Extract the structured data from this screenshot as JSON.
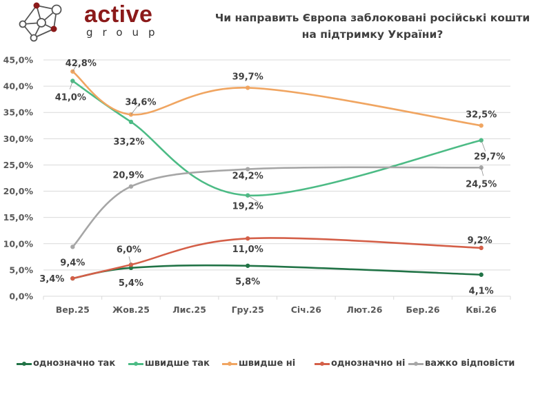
{
  "logo": {
    "word": "active",
    "sub": "group",
    "colors": {
      "brand": "#8b1a1a",
      "node": "#8b1a1a",
      "line": "#555555"
    }
  },
  "title": {
    "line1": "Чи направить Європа заблоковані російські кошти",
    "line2": "на підтримку України?"
  },
  "chart_data": {
    "type": "line",
    "title": "Чи направить Європа заблоковані російські кошти на підтримку України?",
    "xlabel": "",
    "ylabel": "",
    "categories": [
      "Вер.25",
      "Жов.25",
      "Лис.25",
      "Гру.25",
      "Січ.26",
      "Лют.26",
      "Бер.26",
      "Кві.26"
    ],
    "yticks": [
      "0,0%",
      "5,0%",
      "10,0%",
      "15,0%",
      "20,0%",
      "25,0%",
      "30,0%",
      "35,0%",
      "40,0%",
      "45,0%"
    ],
    "ylim": [
      0,
      45
    ],
    "grid": true,
    "smooth": true,
    "legend_position": "bottom",
    "series": [
      {
        "name": "однозначно так",
        "color": "#217346",
        "values": [
          3.4,
          5.4,
          null,
          5.8,
          null,
          null,
          null,
          4.1
        ],
        "labels": [
          "3,4%",
          "5,4%",
          null,
          "5,8%",
          null,
          null,
          null,
          "4,1%"
        ]
      },
      {
        "name": "швидше так",
        "color": "#4cbb85",
        "values": [
          41.0,
          33.2,
          null,
          19.2,
          null,
          null,
          null,
          29.7
        ],
        "labels": [
          "41,0%",
          "33,2%",
          null,
          "19,2%",
          null,
          null,
          null,
          "29,7%"
        ]
      },
      {
        "name": "швидше ні",
        "color": "#f0a561",
        "values": [
          42.8,
          34.6,
          null,
          39.7,
          null,
          null,
          null,
          32.5
        ],
        "labels": [
          "42,8%",
          "34,6%",
          null,
          "39,7%",
          null,
          null,
          null,
          "32,5%"
        ]
      },
      {
        "name": "однозначно ні",
        "color": "#d45f48",
        "values": [
          3.4,
          6.0,
          null,
          11.0,
          null,
          null,
          null,
          9.2
        ],
        "labels": [
          null,
          "6,0%",
          null,
          "11,0%",
          null,
          null,
          null,
          "9,2%"
        ]
      },
      {
        "name": "важко відповісти",
        "color": "#a6a6a6",
        "values": [
          9.4,
          20.9,
          null,
          24.2,
          null,
          null,
          null,
          24.5
        ],
        "labels": [
          "9,4%",
          "20,9%",
          null,
          "24,2%",
          null,
          null,
          null,
          "24,5%"
        ]
      }
    ]
  }
}
